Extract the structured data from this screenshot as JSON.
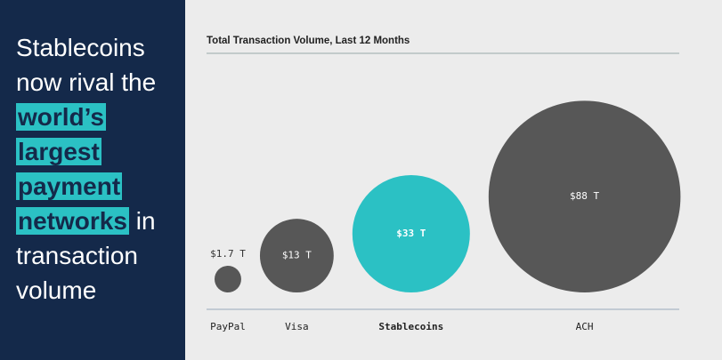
{
  "headline": [
    [
      {
        "text": "Stablecoins"
      }
    ],
    [
      {
        "text": "now rival the"
      }
    ],
    [
      {
        "text": "world’s",
        "highlight": true
      }
    ],
    [
      {
        "text": "largest",
        "highlight": true
      }
    ],
    [
      {
        "text": "payment",
        "highlight": true
      }
    ],
    [
      {
        "text": "networks",
        "highlight": true
      },
      {
        "text": " in"
      }
    ],
    [
      {
        "text": "transaction"
      }
    ],
    [
      {
        "text": "volume"
      }
    ]
  ],
  "chart_data": {
    "type": "bubble",
    "title": "Total Transaction Volume, Last 12 Months",
    "categories": [
      "PayPal",
      "Visa",
      "Stablecoins",
      "ACH"
    ],
    "values": [
      1.7,
      13,
      33,
      88
    ],
    "value_labels": [
      "$1.7 T",
      "$13 T",
      "$33 T",
      "$88 T"
    ],
    "colors": [
      "#575757",
      "#575757",
      "#2bc1c4",
      "#575757"
    ],
    "bold_categories": [
      false,
      false,
      true,
      false
    ]
  }
}
